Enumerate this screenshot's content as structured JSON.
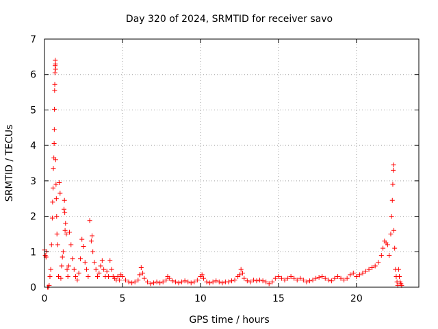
{
  "chart_data": {
    "type": "scatter",
    "title": "Day 320 of 2024, SRMTID for receiver savo",
    "xlabel": "GPS time / hours",
    "ylabel": "SRMTID / TECUs",
    "xlim": [
      0,
      24
    ],
    "ylim": [
      0,
      7
    ],
    "xticks": [
      0,
      5,
      10,
      15,
      20
    ],
    "yticks": [
      0,
      1,
      2,
      3,
      4,
      5,
      6,
      7
    ],
    "grid": true,
    "marker": "+",
    "color": "#ff0000",
    "series": [
      {
        "name": "SRMTID",
        "points": [
          [
            0.0,
            1.05
          ],
          [
            0.05,
            0.9
          ],
          [
            0.1,
            0.85
          ],
          [
            0.15,
            1.0
          ],
          [
            0.2,
            0.0
          ],
          [
            0.25,
            0.0
          ],
          [
            0.3,
            0.05
          ],
          [
            0.35,
            0.3
          ],
          [
            0.4,
            0.5
          ],
          [
            0.45,
            1.2
          ],
          [
            0.5,
            1.95
          ],
          [
            0.52,
            2.4
          ],
          [
            0.55,
            2.8
          ],
          [
            0.57,
            3.35
          ],
          [
            0.6,
            3.65
          ],
          [
            0.62,
            4.05
          ],
          [
            0.63,
            4.45
          ],
          [
            0.64,
            5.02
          ],
          [
            0.65,
            5.55
          ],
          [
            0.66,
            5.72
          ],
          [
            0.67,
            6.05
          ],
          [
            0.68,
            6.25
          ],
          [
            0.69,
            6.4
          ],
          [
            0.7,
            6.3
          ],
          [
            0.71,
            6.15
          ],
          [
            0.72,
            3.6
          ],
          [
            0.74,
            2.9
          ],
          [
            0.76,
            2.5
          ],
          [
            0.78,
            2.0
          ],
          [
            0.8,
            1.5
          ],
          [
            0.85,
            1.2
          ],
          [
            0.9,
            0.3
          ],
          [
            0.95,
            2.95
          ],
          [
            1.0,
            2.65
          ],
          [
            1.05,
            0.25
          ],
          [
            1.1,
            0.6
          ],
          [
            1.15,
            0.85
          ],
          [
            1.2,
            1.0
          ],
          [
            1.25,
            2.2
          ],
          [
            1.28,
            2.45
          ],
          [
            1.3,
            2.1
          ],
          [
            1.32,
            1.6
          ],
          [
            1.35,
            1.8
          ],
          [
            1.4,
            1.5
          ],
          [
            1.45,
            0.5
          ],
          [
            1.5,
            0.3
          ],
          [
            1.55,
            0.6
          ],
          [
            1.6,
            1.55
          ],
          [
            1.7,
            1.2
          ],
          [
            1.8,
            0.8
          ],
          [
            1.9,
            0.5
          ],
          [
            2.0,
            0.3
          ],
          [
            2.1,
            0.2
          ],
          [
            2.2,
            0.4
          ],
          [
            2.3,
            0.8
          ],
          [
            2.4,
            1.35
          ],
          [
            2.5,
            1.15
          ],
          [
            2.6,
            0.7
          ],
          [
            2.7,
            0.5
          ],
          [
            2.8,
            0.3
          ],
          [
            2.9,
            1.88
          ],
          [
            3.0,
            1.3
          ],
          [
            3.05,
            1.45
          ],
          [
            3.1,
            1.0
          ],
          [
            3.2,
            0.7
          ],
          [
            3.3,
            0.5
          ],
          [
            3.4,
            0.3
          ],
          [
            3.5,
            0.4
          ],
          [
            3.6,
            0.6
          ],
          [
            3.7,
            0.75
          ],
          [
            3.8,
            0.5
          ],
          [
            3.9,
            0.3
          ],
          [
            4.0,
            0.45
          ],
          [
            4.1,
            0.3
          ],
          [
            4.2,
            0.75
          ],
          [
            4.3,
            0.5
          ],
          [
            4.4,
            0.3
          ],
          [
            4.5,
            0.25
          ],
          [
            4.6,
            0.2
          ],
          [
            4.7,
            0.3
          ],
          [
            4.8,
            0.2
          ],
          [
            4.9,
            0.35
          ],
          [
            5.0,
            0.3
          ],
          [
            5.2,
            0.2
          ],
          [
            5.4,
            0.15
          ],
          [
            5.6,
            0.12
          ],
          [
            5.8,
            0.15
          ],
          [
            6.0,
            0.2
          ],
          [
            6.1,
            0.35
          ],
          [
            6.2,
            0.55
          ],
          [
            6.3,
            0.4
          ],
          [
            6.4,
            0.25
          ],
          [
            6.6,
            0.15
          ],
          [
            6.8,
            0.1
          ],
          [
            7.0,
            0.12
          ],
          [
            7.2,
            0.15
          ],
          [
            7.4,
            0.12
          ],
          [
            7.6,
            0.15
          ],
          [
            7.8,
            0.2
          ],
          [
            7.9,
            0.3
          ],
          [
            8.0,
            0.25
          ],
          [
            8.2,
            0.18
          ],
          [
            8.4,
            0.15
          ],
          [
            8.6,
            0.12
          ],
          [
            8.8,
            0.15
          ],
          [
            9.0,
            0.18
          ],
          [
            9.2,
            0.15
          ],
          [
            9.4,
            0.12
          ],
          [
            9.6,
            0.15
          ],
          [
            9.8,
            0.2
          ],
          [
            10.0,
            0.3
          ],
          [
            10.1,
            0.35
          ],
          [
            10.2,
            0.25
          ],
          [
            10.4,
            0.15
          ],
          [
            10.6,
            0.12
          ],
          [
            10.8,
            0.15
          ],
          [
            11.0,
            0.18
          ],
          [
            11.2,
            0.15
          ],
          [
            11.4,
            0.12
          ],
          [
            11.6,
            0.15
          ],
          [
            11.8,
            0.15
          ],
          [
            12.0,
            0.18
          ],
          [
            12.2,
            0.2
          ],
          [
            12.4,
            0.3
          ],
          [
            12.5,
            0.35
          ],
          [
            12.6,
            0.5
          ],
          [
            12.7,
            0.4
          ],
          [
            12.8,
            0.25
          ],
          [
            13.0,
            0.18
          ],
          [
            13.2,
            0.15
          ],
          [
            13.4,
            0.2
          ],
          [
            13.6,
            0.18
          ],
          [
            13.8,
            0.2
          ],
          [
            14.0,
            0.18
          ],
          [
            14.2,
            0.15
          ],
          [
            14.4,
            0.1
          ],
          [
            14.6,
            0.15
          ],
          [
            14.8,
            0.25
          ],
          [
            15.0,
            0.3
          ],
          [
            15.2,
            0.25
          ],
          [
            15.4,
            0.2
          ],
          [
            15.6,
            0.25
          ],
          [
            15.8,
            0.3
          ],
          [
            16.0,
            0.25
          ],
          [
            16.2,
            0.2
          ],
          [
            16.4,
            0.25
          ],
          [
            16.6,
            0.2
          ],
          [
            16.8,
            0.15
          ],
          [
            17.0,
            0.18
          ],
          [
            17.2,
            0.2
          ],
          [
            17.4,
            0.25
          ],
          [
            17.6,
            0.28
          ],
          [
            17.8,
            0.3
          ],
          [
            18.0,
            0.25
          ],
          [
            18.2,
            0.2
          ],
          [
            18.4,
            0.18
          ],
          [
            18.6,
            0.25
          ],
          [
            18.8,
            0.3
          ],
          [
            19.0,
            0.25
          ],
          [
            19.2,
            0.2
          ],
          [
            19.4,
            0.25
          ],
          [
            19.6,
            0.35
          ],
          [
            19.8,
            0.4
          ],
          [
            20.0,
            0.3
          ],
          [
            20.2,
            0.35
          ],
          [
            20.4,
            0.4
          ],
          [
            20.6,
            0.45
          ],
          [
            20.8,
            0.5
          ],
          [
            21.0,
            0.55
          ],
          [
            21.2,
            0.6
          ],
          [
            21.4,
            0.7
          ],
          [
            21.6,
            0.9
          ],
          [
            21.7,
            1.1
          ],
          [
            21.8,
            1.3
          ],
          [
            21.9,
            1.25
          ],
          [
            22.0,
            1.2
          ],
          [
            22.1,
            0.9
          ],
          [
            22.2,
            1.5
          ],
          [
            22.25,
            2.0
          ],
          [
            22.3,
            2.45
          ],
          [
            22.33,
            2.9
          ],
          [
            22.36,
            3.3
          ],
          [
            22.38,
            3.45
          ],
          [
            22.4,
            1.6
          ],
          [
            22.45,
            1.1
          ],
          [
            22.5,
            0.5
          ],
          [
            22.55,
            0.3
          ],
          [
            22.6,
            0.15
          ],
          [
            22.65,
            0.05
          ],
          [
            22.7,
            0.5
          ],
          [
            22.75,
            0.3
          ],
          [
            22.8,
            0.15
          ],
          [
            22.85,
            0.1
          ],
          [
            22.9,
            0.05
          ]
        ]
      }
    ]
  }
}
